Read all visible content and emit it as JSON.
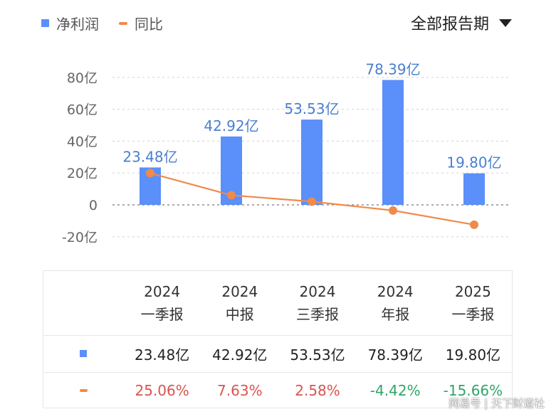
{
  "legend": {
    "bar_label": "净利润",
    "line_label": "同比"
  },
  "period_selector": {
    "label": "全部报告期"
  },
  "chart_data": {
    "type": "bar",
    "categories": [
      "2024 一季报",
      "2024 中报",
      "2024 三季报",
      "2024 年报",
      "2025 一季报"
    ],
    "series": [
      {
        "name": "净利润",
        "type": "bar",
        "values": [
          23.48,
          42.92,
          53.53,
          78.39,
          19.8
        ],
        "color": "#5b8ff9",
        "data_labels": [
          "23.48亿",
          "42.92亿",
          "53.53亿",
          "78.39亿",
          "19.80亿"
        ]
      },
      {
        "name": "同比",
        "type": "line",
        "values": [
          25.06,
          7.63,
          2.58,
          -4.42,
          -15.66
        ],
        "color": "#f08a4b"
      }
    ],
    "yaxis": {
      "ticks": [
        80,
        60,
        40,
        20,
        0,
        -20
      ],
      "tick_labels": [
        "80亿",
        "60亿",
        "40亿",
        "20亿",
        "0",
        "-20亿"
      ],
      "ylim": [
        -20,
        80
      ]
    },
    "grid": true
  },
  "table": {
    "columns": [
      {
        "year": "2024",
        "period": "一季报"
      },
      {
        "year": "2024",
        "period": "中报"
      },
      {
        "year": "2024",
        "period": "三季报"
      },
      {
        "year": "2024",
        "period": "年报"
      },
      {
        "year": "2025",
        "period": "一季报"
      }
    ],
    "net_profit": [
      "23.48亿",
      "42.92亿",
      "53.53亿",
      "78.39亿",
      "19.80亿"
    ],
    "yoy": [
      "25.06%",
      "7.63%",
      "2.58%",
      "-4.42%",
      "-15.66%"
    ]
  },
  "watermark": "网易号 | 天下财道社"
}
